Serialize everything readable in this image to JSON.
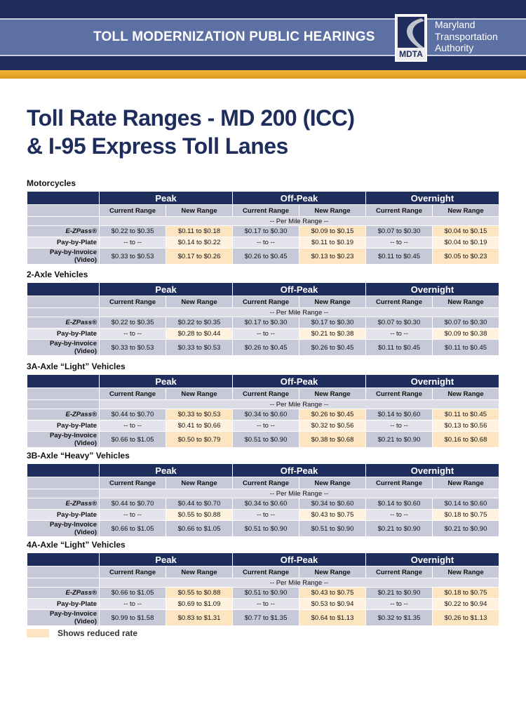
{
  "header": {
    "title": "TOLL MODERNIZATION PUBLIC HEARINGS",
    "logo_text": "MDTA",
    "org_line1": "Maryland",
    "org_line2": "Transportation",
    "org_line3": "Authority"
  },
  "page_title_line1": "Toll Rate Ranges - MD 200 (ICC)",
  "page_title_line2": "& I-95 Express Toll Lanes",
  "periods": [
    "Peak",
    "Off-Peak",
    "Overnight"
  ],
  "subheaders": [
    "Current Range",
    "New Range"
  ],
  "per_mile": "-- Per Mile Range --",
  "row_labels": [
    "E-ZPass®",
    "Pay-by-Plate",
    "Pay-by-Invoice (Video)"
  ],
  "colors": {
    "navy": "#1f2d5c",
    "reduced_rate": "#fde5c2"
  },
  "sections": [
    {
      "title": "Motorcycles",
      "reduced": [
        [
          false,
          true,
          false,
          true,
          false,
          true
        ],
        [
          false,
          true,
          false,
          true,
          false,
          true
        ],
        [
          false,
          true,
          false,
          true,
          false,
          true
        ]
      ],
      "rows": [
        [
          "$0.22 to $0.35",
          "$0.11 to $0.18",
          "$0.17 to $0.30",
          "$0.09 to $0.15",
          "$0.07 to $0.30",
          "$0.04 to $0.15"
        ],
        [
          "-- to --",
          "$0.14 to $0.22",
          "-- to --",
          "$0.11 to $0.19",
          "-- to --",
          "$0.04 to $0.19"
        ],
        [
          "$0.33 to $0.53",
          "$0.17 to $0.26",
          "$0.26 to $0.45",
          "$0.13 to $0.23",
          "$0.11 to $0.45",
          "$0.05 to $0.23"
        ]
      ]
    },
    {
      "title": "2-Axle Vehicles",
      "reduced": [
        [
          false,
          false,
          false,
          false,
          false,
          false
        ],
        [
          false,
          true,
          false,
          true,
          false,
          true
        ],
        [
          false,
          false,
          false,
          false,
          false,
          false
        ]
      ],
      "rows": [
        [
          "$0.22 to $0.35",
          "$0.22 to $0.35",
          "$0.17 to $0.30",
          "$0.17 to $0.30",
          "$0.07 to $0.30",
          "$0.07 to $0.30"
        ],
        [
          "-- to --",
          "$0.28 to $0.44",
          "-- to --",
          "$0.21 to $0.38",
          "-- to --",
          "$0.09 to $0.38"
        ],
        [
          "$0.33 to $0.53",
          "$0.33 to $0.53",
          "$0.26 to $0.45",
          "$0.26 to $0.45",
          "$0.11 to $0.45",
          "$0.11 to $0.45"
        ]
      ]
    },
    {
      "title": "3A-Axle “Light” Vehicles",
      "reduced": [
        [
          false,
          true,
          false,
          true,
          false,
          true
        ],
        [
          false,
          true,
          false,
          true,
          false,
          true
        ],
        [
          false,
          true,
          false,
          true,
          false,
          true
        ]
      ],
      "rows": [
        [
          "$0.44 to $0.70",
          "$0.33 to $0.53",
          "$0.34 to $0.60",
          "$0.26 to $0.45",
          "$0.14 to $0.60",
          "$0.11 to $0.45"
        ],
        [
          "-- to --",
          "$0.41 to $0.66",
          "-- to --",
          "$0.32 to $0.56",
          "-- to --",
          "$0.13 to $0.56"
        ],
        [
          "$0.66 to $1.05",
          "$0.50 to $0.79",
          "$0.51 to $0.90",
          "$0.38 to $0.68",
          "$0.21 to $0.90",
          "$0.16 to $0.68"
        ]
      ]
    },
    {
      "title": "3B-Axle “Heavy” Vehicles",
      "reduced": [
        [
          false,
          false,
          false,
          false,
          false,
          false
        ],
        [
          false,
          true,
          false,
          true,
          false,
          true
        ],
        [
          false,
          false,
          false,
          false,
          false,
          false
        ]
      ],
      "rows": [
        [
          "$0.44 to $0.70",
          "$0.44 to $0.70",
          "$0.34 to $0.60",
          "$0.34 to $0.60",
          "$0.14 to $0.60",
          "$0.14 to $0.60"
        ],
        [
          "-- to --",
          "$0.55 to $0.88",
          "-- to --",
          "$0.43 to $0.75",
          "-- to --",
          "$0.18 to $0.75"
        ],
        [
          "$0.66 to $1.05",
          "$0.66 to $1.05",
          "$0.51 to $0.90",
          "$0.51 to $0.90",
          "$0.21 to $0.90",
          "$0.21 to $0.90"
        ]
      ]
    },
    {
      "title": "4A-Axle “Light” Vehicles",
      "reduced": [
        [
          false,
          true,
          false,
          true,
          false,
          true
        ],
        [
          false,
          true,
          false,
          true,
          false,
          true
        ],
        [
          false,
          true,
          false,
          true,
          false,
          true
        ]
      ],
      "rows": [
        [
          "$0.66 to $1.05",
          "$0.55 to $0.88",
          "$0.51 to $0.90",
          "$0.43 to $0.75",
          "$0.21 to $0.90",
          "$0.18 to $0.75"
        ],
        [
          "-- to --",
          "$0.69 to $1.09",
          "-- to --",
          "$0.53 to $0.94",
          "-- to --",
          "$0.22 to $0.94"
        ],
        [
          "$0.99 to $1.58",
          "$0.83 to $1.31",
          "$0.77 to $1.35",
          "$0.64 to $1.13",
          "$0.32 to $1.35",
          "$0.26 to $1.13"
        ]
      ]
    }
  ],
  "legend": {
    "label": "Shows reduced rate"
  }
}
